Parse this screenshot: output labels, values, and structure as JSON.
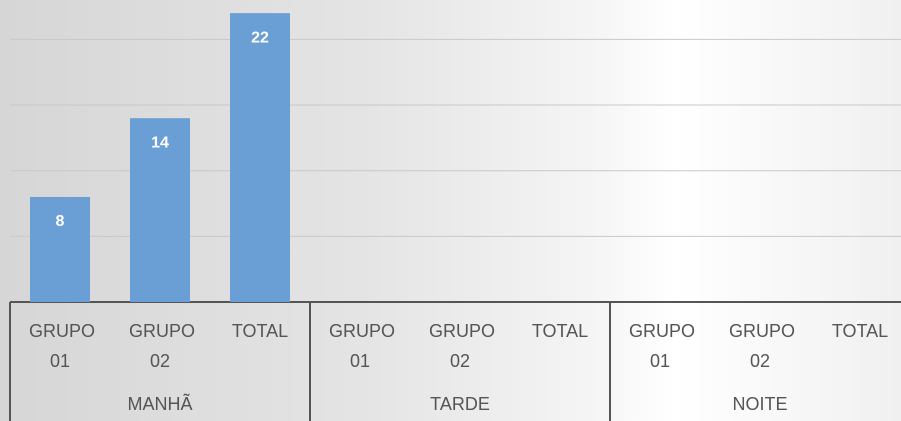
{
  "chart_data": {
    "type": "bar",
    "categories": [
      "GRUPO 01",
      "GRUPO 02",
      "TOTAL",
      "GRUPO 01",
      "GRUPO 02",
      "TOTAL",
      "GRUPO 01",
      "GRUPO 02",
      "TOTAL"
    ],
    "groups": [
      "MANHÃ",
      "TARDE",
      "NOITE"
    ],
    "values": [
      8,
      14,
      22,
      null,
      null,
      null,
      0,
      0,
      0
    ],
    "color": "#6a9fd6",
    "ylim": [
      0,
      23
    ],
    "yticks": [
      0,
      5,
      10,
      15,
      20
    ],
    "grid": true
  }
}
